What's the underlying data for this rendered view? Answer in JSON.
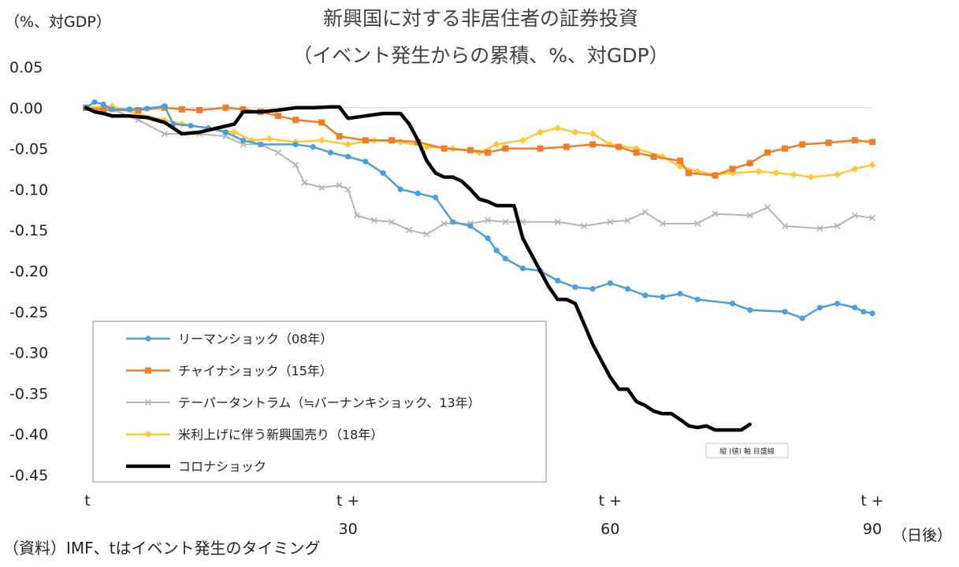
{
  "chart_data": {
    "type": "line",
    "title": "新興国に対する非居住者の証券投資",
    "subtitle": "（イベント発生からの累積、%、対GDP）",
    "ylabel": "（%、対GDP）",
    "xlabel": "（日後）",
    "source": "（資料）IMF、tはイベント発生のタイミング",
    "tooltip": "縦 (値) 軸 目盛線",
    "ylim": [
      -0.45,
      0.05
    ],
    "yticks": [
      0.05,
      0.0,
      -0.05,
      -0.1,
      -0.15,
      -0.2,
      -0.25,
      -0.3,
      -0.35,
      -0.4,
      -0.45
    ],
    "ytick_labels": [
      "0.05",
      "0.00",
      "-0.05",
      "-0.10",
      "-0.15",
      "-0.20",
      "-0.25",
      "-0.30",
      "-0.35",
      "-0.40",
      "-0.45"
    ],
    "xlim": [
      0,
      90
    ],
    "xticks": [
      {
        "value": 0,
        "line1": "t",
        "line2": ""
      },
      {
        "value": 30,
        "line1": "t +",
        "line2": "30"
      },
      {
        "value": 60,
        "line1": "t +",
        "line2": "60"
      },
      {
        "value": 90,
        "line1": "t +",
        "line2": "90"
      }
    ],
    "series": [
      {
        "name": "リーマンショック（08年）",
        "color": "#4a9fe0",
        "marker": "circle",
        "stroke_width": 2.5,
        "points": [
          [
            0,
            0
          ],
          [
            1,
            0.007
          ],
          [
            2,
            0.004
          ],
          [
            3,
            -0.002
          ],
          [
            5,
            -0.002
          ],
          [
            7,
            -0.001
          ],
          [
            9,
            0.002
          ],
          [
            10,
            -0.02
          ],
          [
            12,
            -0.022
          ],
          [
            14,
            -0.025
          ],
          [
            16,
            -0.03
          ],
          [
            18,
            -0.04
          ],
          [
            20,
            -0.045
          ],
          [
            24,
            -0.045
          ],
          [
            26,
            -0.048
          ],
          [
            28,
            -0.055
          ],
          [
            30,
            -0.06
          ],
          [
            32,
            -0.066
          ],
          [
            34,
            -0.08
          ],
          [
            36,
            -0.1
          ],
          [
            38,
            -0.105
          ],
          [
            40,
            -0.11
          ],
          [
            42,
            -0.14
          ],
          [
            44,
            -0.145
          ],
          [
            46,
            -0.16
          ],
          [
            47,
            -0.175
          ],
          [
            48,
            -0.185
          ],
          [
            50,
            -0.197
          ],
          [
            52,
            -0.2
          ],
          [
            54,
            -0.212
          ],
          [
            56,
            -0.22
          ],
          [
            58,
            -0.222
          ],
          [
            60,
            -0.215
          ],
          [
            62,
            -0.222
          ],
          [
            64,
            -0.23
          ],
          [
            66,
            -0.232
          ],
          [
            68,
            -0.228
          ],
          [
            70,
            -0.235
          ],
          [
            74,
            -0.24
          ],
          [
            76,
            -0.248
          ],
          [
            80,
            -0.25
          ],
          [
            82,
            -0.258
          ],
          [
            84,
            -0.245
          ],
          [
            86,
            -0.24
          ],
          [
            88,
            -0.245
          ],
          [
            89,
            -0.25
          ],
          [
            90,
            -0.252
          ]
        ]
      },
      {
        "name": "チャイナショック（15年）",
        "color": "#f07c24",
        "marker": "square",
        "stroke_width": 2.5,
        "points": [
          [
            0,
            0
          ],
          [
            2,
            -0.003
          ],
          [
            6,
            -0.003
          ],
          [
            9,
            0.0
          ],
          [
            11,
            -0.002
          ],
          [
            13,
            -0.003
          ],
          [
            16,
            0.0
          ],
          [
            18,
            -0.002
          ],
          [
            20,
            -0.005
          ],
          [
            22,
            -0.01
          ],
          [
            24,
            -0.015
          ],
          [
            27,
            -0.018
          ],
          [
            29,
            -0.035
          ],
          [
            32,
            -0.04
          ],
          [
            35,
            -0.04
          ],
          [
            38,
            -0.042
          ],
          [
            41,
            -0.05
          ],
          [
            44,
            -0.052
          ],
          [
            46,
            -0.055
          ],
          [
            48,
            -0.05
          ],
          [
            52,
            -0.05
          ],
          [
            55,
            -0.048
          ],
          [
            58,
            -0.045
          ],
          [
            61,
            -0.048
          ],
          [
            63,
            -0.055
          ],
          [
            65,
            -0.06
          ],
          [
            68,
            -0.065
          ],
          [
            69,
            -0.08
          ],
          [
            72,
            -0.083
          ],
          [
            74,
            -0.075
          ],
          [
            76,
            -0.068
          ],
          [
            78,
            -0.055
          ],
          [
            80,
            -0.05
          ],
          [
            82,
            -0.045
          ],
          [
            85,
            -0.043
          ],
          [
            88,
            -0.04
          ],
          [
            90,
            -0.042
          ]
        ]
      },
      {
        "name": "テーパータントラム（≒バーナンキショック、13年）",
        "color": "#b4b4b4",
        "marker": "x",
        "stroke_width": 2,
        "points": [
          [
            0,
            0
          ],
          [
            3,
            -0.002
          ],
          [
            6,
            -0.015
          ],
          [
            9,
            -0.032
          ],
          [
            13,
            -0.032
          ],
          [
            16,
            -0.035
          ],
          [
            18,
            -0.045
          ],
          [
            20,
            -0.045
          ],
          [
            22,
            -0.055
          ],
          [
            24,
            -0.07
          ],
          [
            25,
            -0.092
          ],
          [
            27,
            -0.098
          ],
          [
            29,
            -0.095
          ],
          [
            30,
            -0.1
          ],
          [
            31,
            -0.132
          ],
          [
            33,
            -0.138
          ],
          [
            35,
            -0.14
          ],
          [
            37,
            -0.15
          ],
          [
            39,
            -0.155
          ],
          [
            41,
            -0.142
          ],
          [
            44,
            -0.142
          ],
          [
            46,
            -0.138
          ],
          [
            48,
            -0.14
          ],
          [
            50,
            -0.14
          ],
          [
            54,
            -0.14
          ],
          [
            57,
            -0.145
          ],
          [
            60,
            -0.14
          ],
          [
            62,
            -0.138
          ],
          [
            64,
            -0.128
          ],
          [
            66,
            -0.142
          ],
          [
            70,
            -0.142
          ],
          [
            72,
            -0.13
          ],
          [
            76,
            -0.132
          ],
          [
            78,
            -0.122
          ],
          [
            80,
            -0.145
          ],
          [
            84,
            -0.148
          ],
          [
            86,
            -0.145
          ],
          [
            88,
            -0.132
          ],
          [
            90,
            -0.135
          ]
        ]
      },
      {
        "name": "米利上げに伴う新興国売り（18年）",
        "color": "#ffc832",
        "marker": "diamond",
        "stroke_width": 2.5,
        "points": [
          [
            0,
            0
          ],
          [
            3,
            0.002
          ],
          [
            6,
            -0.008
          ],
          [
            9,
            -0.015
          ],
          [
            11,
            -0.02
          ],
          [
            14,
            -0.025
          ],
          [
            17,
            -0.03
          ],
          [
            19,
            -0.04
          ],
          [
            21,
            -0.038
          ],
          [
            24,
            -0.042
          ],
          [
            27,
            -0.04
          ],
          [
            30,
            -0.045
          ],
          [
            33,
            -0.04
          ],
          [
            36,
            -0.042
          ],
          [
            39,
            -0.048
          ],
          [
            42,
            -0.05
          ],
          [
            45,
            -0.055
          ],
          [
            47,
            -0.045
          ],
          [
            50,
            -0.04
          ],
          [
            52,
            -0.03
          ],
          [
            54,
            -0.025
          ],
          [
            56,
            -0.03
          ],
          [
            58,
            -0.032
          ],
          [
            60,
            -0.045
          ],
          [
            63,
            -0.05
          ],
          [
            66,
            -0.06
          ],
          [
            68,
            -0.072
          ],
          [
            70,
            -0.078
          ],
          [
            72,
            -0.082
          ],
          [
            74,
            -0.08
          ],
          [
            77,
            -0.078
          ],
          [
            79,
            -0.08
          ],
          [
            81,
            -0.082
          ],
          [
            83,
            -0.085
          ],
          [
            86,
            -0.082
          ],
          [
            88,
            -0.075
          ],
          [
            90,
            -0.07
          ]
        ]
      },
      {
        "name": "コロナショック",
        "color": "#000000",
        "marker": "none",
        "stroke_width": 4.5,
        "points": [
          [
            0,
            0
          ],
          [
            1,
            -0.005
          ],
          [
            2,
            -0.007
          ],
          [
            3,
            -0.01
          ],
          [
            5,
            -0.01
          ],
          [
            7,
            -0.012
          ],
          [
            9,
            -0.018
          ],
          [
            11,
            -0.032
          ],
          [
            13,
            -0.03
          ],
          [
            15,
            -0.025
          ],
          [
            17,
            -0.02
          ],
          [
            18,
            -0.005
          ],
          [
            20,
            -0.005
          ],
          [
            22,
            -0.003
          ],
          [
            24,
            0.0
          ],
          [
            26,
            0.0
          ],
          [
            28,
            0.001
          ],
          [
            29,
            0.001
          ],
          [
            30,
            -0.013
          ],
          [
            32,
            -0.01
          ],
          [
            34,
            -0.007
          ],
          [
            36,
            -0.007
          ],
          [
            37,
            -0.02
          ],
          [
            38,
            -0.04
          ],
          [
            39,
            -0.065
          ],
          [
            40,
            -0.08
          ],
          [
            41,
            -0.085
          ],
          [
            42,
            -0.085
          ],
          [
            43,
            -0.09
          ],
          [
            44,
            -0.1
          ],
          [
            45,
            -0.112
          ],
          [
            46,
            -0.115
          ],
          [
            47,
            -0.12
          ],
          [
            49,
            -0.12
          ],
          [
            50,
            -0.16
          ],
          [
            52,
            -0.2
          ],
          [
            53,
            -0.22
          ],
          [
            54,
            -0.235
          ],
          [
            55,
            -0.235
          ],
          [
            56,
            -0.24
          ],
          [
            57,
            -0.265
          ],
          [
            58,
            -0.29
          ],
          [
            59,
            -0.31
          ],
          [
            60,
            -0.33
          ],
          [
            61,
            -0.345
          ],
          [
            62,
            -0.345
          ],
          [
            63,
            -0.36
          ],
          [
            64,
            -0.365
          ],
          [
            65,
            -0.372
          ],
          [
            66,
            -0.375
          ],
          [
            67,
            -0.375
          ],
          [
            68,
            -0.382
          ],
          [
            69,
            -0.39
          ],
          [
            70,
            -0.392
          ],
          [
            71,
            -0.39
          ],
          [
            72,
            -0.395
          ],
          [
            75,
            -0.395
          ],
          [
            76,
            -0.388
          ]
        ]
      }
    ]
  }
}
